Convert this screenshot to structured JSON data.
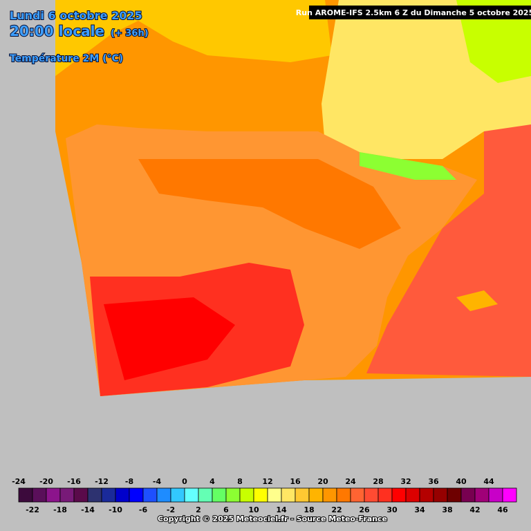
{
  "header": {
    "date": "Lundi 6 octobre 2025",
    "time": "20:00 locale",
    "lead": "(+ 36h)",
    "parameter": "Température 2M (°C)",
    "run": "Run AROME-IFS 2.5km 6 Z du Dimanche 5 octobre 2025"
  },
  "legend": {
    "top_labels": [
      -24,
      -20,
      -16,
      -12,
      -8,
      -4,
      0,
      4,
      8,
      12,
      16,
      20,
      24,
      28,
      32,
      36,
      40,
      44
    ],
    "bottom_labels": [
      -22,
      -18,
      -14,
      -10,
      -6,
      -2,
      2,
      6,
      10,
      14,
      18,
      22,
      26,
      30,
      34,
      38,
      42,
      46
    ],
    "colors": [
      "#3c0a3c",
      "#5a0f5a",
      "#8c148c",
      "#781a78",
      "#5a0a4a",
      "#2d3270",
      "#1a2a9a",
      "#0000cc",
      "#0000ff",
      "#1e50ff",
      "#1e8cff",
      "#32c8ff",
      "#64ffff",
      "#64ffb4",
      "#64ff64",
      "#8cff32",
      "#c8ff00",
      "#ffff00",
      "#ffff8c",
      "#ffe664",
      "#ffc832",
      "#ffb400",
      "#ff9600",
      "#ff7800",
      "#ff6432",
      "#ff4b32",
      "#ff3020",
      "#ff0000",
      "#dc0000",
      "#b40000",
      "#960000",
      "#6e0000",
      "#780050",
      "#a00078",
      "#c800c8",
      "#ff00ff"
    ]
  },
  "footer": {
    "copyright": "Copyright © 2025 Meteociel.fr - Source Meteo-France"
  }
}
